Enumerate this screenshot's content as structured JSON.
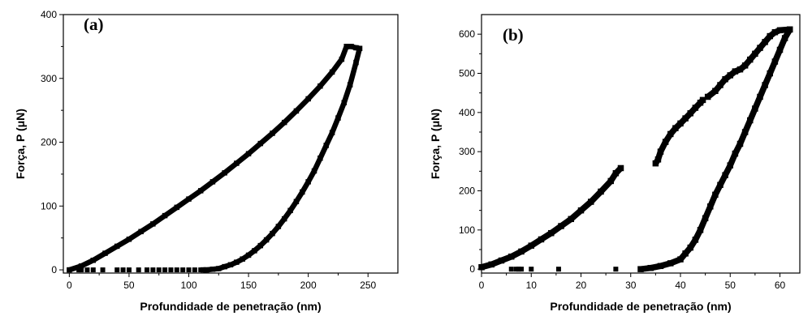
{
  "chart_data": [
    {
      "type": "scatter",
      "panel_label": "(a)",
      "xlabel": "Profundidade de penetração (nm)",
      "ylabel": "Força, P (μN)",
      "xlim": [
        -5,
        275
      ],
      "ylim": [
        -5,
        400
      ],
      "xticks": [
        0,
        50,
        100,
        150,
        200,
        250
      ],
      "yticks": [
        0,
        100,
        200,
        300,
        400
      ],
      "grid": false,
      "marker": "square",
      "series": [
        {
          "role": "loading",
          "points": [
            [
              0,
              0
            ],
            [
              10,
              6
            ],
            [
              20,
              15
            ],
            [
              30,
              26
            ],
            [
              40,
              37
            ],
            [
              50,
              48
            ],
            [
              60,
              60
            ],
            [
              70,
              72
            ],
            [
              80,
              85
            ],
            [
              90,
              98
            ],
            [
              100,
              111
            ],
            [
              110,
              124
            ],
            [
              120,
              138
            ],
            [
              130,
              152
            ],
            [
              140,
              167
            ],
            [
              150,
              182
            ],
            [
              160,
              198
            ],
            [
              170,
              214
            ],
            [
              180,
              231
            ],
            [
              190,
              249
            ],
            [
              200,
              268
            ],
            [
              210,
              288
            ],
            [
              220,
              310
            ],
            [
              228,
              330
            ],
            [
              232,
              350
            ]
          ]
        },
        {
          "role": "hold",
          "points": [
            [
              232,
              350
            ],
            [
              236,
              350
            ],
            [
              240,
              348
            ],
            [
              243,
              347
            ]
          ]
        },
        {
          "role": "unloading",
          "points": [
            [
              243,
              347
            ],
            [
              240,
              325
            ],
            [
              235,
              290
            ],
            [
              230,
              262
            ],
            [
              225,
              238
            ],
            [
              220,
              215
            ],
            [
              215,
              195
            ],
            [
              210,
              175
            ],
            [
              205,
              155
            ],
            [
              200,
              138
            ],
            [
              195,
              122
            ],
            [
              190,
              107
            ],
            [
              185,
              93
            ],
            [
              180,
              80
            ],
            [
              175,
              68
            ],
            [
              170,
              57
            ],
            [
              165,
              47
            ],
            [
              160,
              38
            ],
            [
              155,
              30
            ],
            [
              150,
              23
            ],
            [
              145,
              17
            ],
            [
              140,
              12
            ],
            [
              135,
              8
            ],
            [
              130,
              5
            ],
            [
              125,
              2
            ],
            [
              120,
              1
            ],
            [
              115,
              0
            ],
            [
              112,
              0
            ]
          ]
        },
        {
          "role": "baseline",
          "points": [
            [
              8,
              0
            ],
            [
              10,
              0
            ],
            [
              15,
              0
            ],
            [
              20,
              0
            ],
            [
              28,
              0
            ],
            [
              40,
              0
            ],
            [
              45,
              0
            ],
            [
              50,
              0
            ],
            [
              58,
              0
            ],
            [
              65,
              0
            ],
            [
              70,
              0
            ],
            [
              75,
              0
            ],
            [
              80,
              0
            ],
            [
              85,
              0
            ],
            [
              90,
              0
            ],
            [
              95,
              0
            ],
            [
              100,
              0
            ],
            [
              105,
              0
            ],
            [
              110,
              0
            ]
          ]
        }
      ]
    },
    {
      "type": "scatter",
      "panel_label": "(b)",
      "xlabel": "Profundidade de penetração (nm)",
      "ylabel": "Força, P (μN)",
      "xlim": [
        0,
        64
      ],
      "ylim": [
        -10,
        650
      ],
      "xticks": [
        0,
        10,
        20,
        30,
        40,
        50,
        60
      ],
      "yticks": [
        0,
        100,
        200,
        300,
        400,
        500,
        600
      ],
      "grid": false,
      "marker": "square",
      "series": [
        {
          "role": "loading-segment-1",
          "points": [
            [
              0,
              5
            ],
            [
              2,
              12
            ],
            [
              4,
              22
            ],
            [
              6,
              32
            ],
            [
              8,
              45
            ],
            [
              10,
              60
            ],
            [
              12,
              76
            ],
            [
              14,
              92
            ],
            [
              16,
              110
            ],
            [
              18,
              128
            ],
            [
              20,
              150
            ],
            [
              22,
              172
            ],
            [
              24,
              198
            ],
            [
              26,
              225
            ],
            [
              27,
              245
            ],
            [
              28,
              258
            ]
          ]
        },
        {
          "role": "loading-segment-2",
          "points": [
            [
              35,
              270
            ],
            [
              35.5,
              280
            ],
            [
              36,
              300
            ],
            [
              37,
              325
            ],
            [
              38,
              345
            ],
            [
              39,
              360
            ],
            [
              40,
              372
            ],
            [
              41,
              385
            ],
            [
              42,
              398
            ],
            [
              43,
              412
            ],
            [
              44,
              425
            ],
            [
              44.5,
              432
            ]
          ]
        },
        {
          "role": "loading-segment-3",
          "points": [
            [
              45.5,
              440
            ],
            [
              47,
              455
            ],
            [
              48,
              470
            ],
            [
              49,
              485
            ],
            [
              50,
              495
            ],
            [
              51,
              505
            ],
            [
              52,
              510
            ],
            [
              53,
              520
            ],
            [
              54,
              535
            ],
            [
              55,
              550
            ],
            [
              56,
              565
            ],
            [
              57,
              580
            ],
            [
              58,
              595
            ],
            [
              59,
              605
            ],
            [
              60,
              610
            ],
            [
              62,
              612
            ]
          ]
        },
        {
          "role": "unloading",
          "points": [
            [
              62,
              612
            ],
            [
              61,
              590
            ],
            [
              60,
              560
            ],
            [
              59,
              530
            ],
            [
              58,
              500
            ],
            [
              57,
              470
            ],
            [
              56,
              440
            ],
            [
              55,
              410
            ],
            [
              54,
              380
            ],
            [
              53,
              350
            ],
            [
              52,
              320
            ],
            [
              51,
              295
            ],
            [
              50,
              265
            ],
            [
              49,
              240
            ],
            [
              48,
              215
            ],
            [
              47,
              190
            ],
            [
              46,
              160
            ],
            [
              45,
              130
            ],
            [
              44,
              100
            ],
            [
              43,
              75
            ],
            [
              42,
              55
            ],
            [
              41,
              40
            ],
            [
              40,
              25
            ],
            [
              38,
              15
            ],
            [
              36,
              8
            ],
            [
              34,
              3
            ],
            [
              32,
              0
            ]
          ]
        },
        {
          "role": "baseline",
          "points": [
            [
              6,
              0
            ],
            [
              7,
              0
            ],
            [
              7.5,
              0
            ],
            [
              8,
              0
            ],
            [
              10,
              0
            ],
            [
              15.5,
              0
            ],
            [
              27,
              0
            ]
          ]
        }
      ]
    }
  ]
}
